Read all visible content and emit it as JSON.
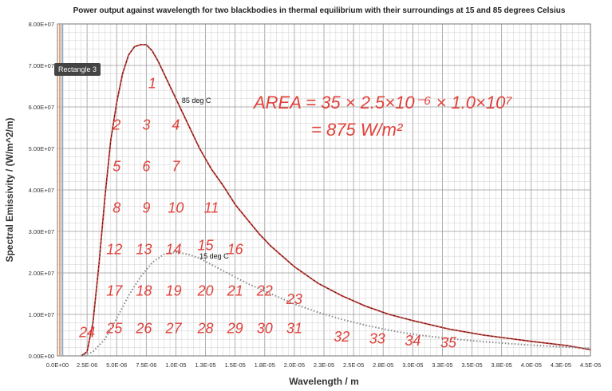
{
  "chart_data": {
    "type": "line",
    "title": "Power output against wavelength for two blackbodies in thermal equilibrium with their surroundings at 15 and 85 degrees Celsius",
    "xlabel": "Wavelength / m",
    "ylabel": "Spectral Emissivity / (W/m^2/m)",
    "xlim": [
      0,
      4.5e-05
    ],
    "ylim": [
      0,
      80000000.0
    ],
    "x_tick_labels": [
      "0.0E+00",
      "2.5E-06",
      "5.0E-06",
      "7.5E-06",
      "1.0E-05",
      "1.3E-05",
      "1.5E-05",
      "1.8E-05",
      "2.0E-05",
      "2.3E-05",
      "2.5E-05",
      "2.8E-05",
      "3.0E-05",
      "3.3E-05",
      "3.5E-05",
      "3.8E-05",
      "4.0E-05",
      "4.3E-05",
      "4.5E-05"
    ],
    "y_tick_labels": [
      "0.00E+00",
      "1.00E+07",
      "2.00E+07",
      "3.00E+07",
      "4.00E+07",
      "5.00E+07",
      "6.00E+07",
      "7.00E+07",
      "8.00E+07"
    ],
    "grid": true,
    "series": [
      {
        "name": "85 deg C",
        "color": "#e0413a",
        "x": [
          2e-06,
          2.5e-06,
          3e-06,
          3.5e-06,
          4e-06,
          4.5e-06,
          5e-06,
          5.5e-06,
          6e-06,
          6.5e-06,
          7e-06,
          7.5e-06,
          8e-06,
          8.5e-06,
          9e-06,
          9.5e-06,
          1e-05,
          1.1e-05,
          1.2e-05,
          1.3e-05,
          1.4e-05,
          1.5e-05,
          1.6e-05,
          1.7e-05,
          1.8e-05,
          2e-05,
          2.2e-05,
          2.4e-05,
          2.6e-05,
          2.8e-05,
          3e-05,
          3.3e-05,
          3.6e-05,
          4e-05,
          4.3e-05,
          4.5e-05
        ],
        "y": [
          0,
          1000000.0,
          8000000.0,
          22000000.0,
          38000000.0,
          52000000.0,
          61000000.0,
          68000000.0,
          72500000.0,
          74500000.0,
          75000000.0,
          75000000.0,
          73500000.0,
          71000000.0,
          68000000.0,
          65000000.0,
          62000000.0,
          56000000.0,
          50000000.0,
          45000000.0,
          41000000.0,
          36500000.0,
          33000000.0,
          29500000.0,
          26500000.0,
          21500000.0,
          17500000.0,
          14500000.0,
          12000000.0,
          10000000.0,
          8500000.0,
          6500000.0,
          5000000.0,
          3500000.0,
          2500000.0,
          1500000.0
        ]
      },
      {
        "name": "15 deg C",
        "color": "#888888",
        "x": [
          2e-06,
          3e-06,
          4e-06,
          5e-06,
          6e-06,
          7e-06,
          8e-06,
          9e-06,
          1e-05,
          1.1e-05,
          1.2e-05,
          1.3e-05,
          1.4e-05,
          1.6e-05,
          1.8e-05,
          2e-05,
          2.2e-05,
          2.4e-05,
          2.6e-05,
          2.8e-05,
          3e-05,
          3.3e-05,
          3.6e-05,
          4e-05,
          4.5e-05
        ],
        "y": [
          0,
          1000000.0,
          4000000.0,
          9000000.0,
          14500000.0,
          19000000.0,
          22500000.0,
          24500000.0,
          25000000.0,
          24500000.0,
          23500000.0,
          22000000.0,
          20500000.0,
          17500000.0,
          15000000.0,
          12500000.0,
          10500000.0,
          8800000.0,
          7400000.0,
          6200000.0,
          5200000.0,
          4200000.0,
          3400000.0,
          2600000.0,
          1800000.0
        ]
      }
    ],
    "annotations": {
      "label_85": "85 deg C",
      "label_15": "15 deg C",
      "rectangle_label": "Rectangle 3",
      "area_line1": "AREA = 35 × 2.5×10⁻⁶ × 1.0×10⁷",
      "area_line2": "= 875  W/m²",
      "square_numbers": [
        {
          "n": "1",
          "x": 8e-06,
          "y": 64500000.0
        },
        {
          "n": "2",
          "x": 5e-06,
          "y": 54500000.0
        },
        {
          "n": "3",
          "x": 7.5e-06,
          "y": 54500000.0
        },
        {
          "n": "4",
          "x": 1e-05,
          "y": 54500000.0
        },
        {
          "n": "5",
          "x": 5e-06,
          "y": 44500000.0
        },
        {
          "n": "6",
          "x": 7.5e-06,
          "y": 44500000.0
        },
        {
          "n": "7",
          "x": 1e-05,
          "y": 44500000.0
        },
        {
          "n": "8",
          "x": 5e-06,
          "y": 34500000.0
        },
        {
          "n": "9",
          "x": 7.5e-06,
          "y": 34500000.0
        },
        {
          "n": "10",
          "x": 1e-05,
          "y": 34500000.0
        },
        {
          "n": "11",
          "x": 1.3e-05,
          "y": 34500000.0
        },
        {
          "n": "12",
          "x": 4.8e-06,
          "y": 24500000.0
        },
        {
          "n": "13",
          "x": 7.3e-06,
          "y": 24500000.0
        },
        {
          "n": "14",
          "x": 9.8e-06,
          "y": 24500000.0
        },
        {
          "n": "15",
          "x": 1.25e-05,
          "y": 25500000.0
        },
        {
          "n": "16",
          "x": 1.5e-05,
          "y": 24500000.0
        },
        {
          "n": "17",
          "x": 4.8e-06,
          "y": 14500000.0
        },
        {
          "n": "18",
          "x": 7.3e-06,
          "y": 14500000.0
        },
        {
          "n": "19",
          "x": 9.8e-06,
          "y": 14500000.0
        },
        {
          "n": "20",
          "x": 1.25e-05,
          "y": 14500000.0
        },
        {
          "n": "21",
          "x": 1.5e-05,
          "y": 14500000.0
        },
        {
          "n": "22",
          "x": 1.75e-05,
          "y": 14500000.0
        },
        {
          "n": "23",
          "x": 2e-05,
          "y": 12500000.0
        },
        {
          "n": "24",
          "x": 2.5e-06,
          "y": 4500000.0
        },
        {
          "n": "25",
          "x": 4.8e-06,
          "y": 5500000.0
        },
        {
          "n": "26",
          "x": 7.3e-06,
          "y": 5500000.0
        },
        {
          "n": "27",
          "x": 9.8e-06,
          "y": 5500000.0
        },
        {
          "n": "28",
          "x": 1.25e-05,
          "y": 5500000.0
        },
        {
          "n": "29",
          "x": 1.5e-05,
          "y": 5500000.0
        },
        {
          "n": "30",
          "x": 1.75e-05,
          "y": 5500000.0
        },
        {
          "n": "31",
          "x": 2e-05,
          "y": 5500000.0
        },
        {
          "n": "32",
          "x": 2.4e-05,
          "y": 3500000.0
        },
        {
          "n": "33",
          "x": 2.7e-05,
          "y": 3000000.0
        },
        {
          "n": "34",
          "x": 3e-05,
          "y": 2500000.0
        },
        {
          "n": "35",
          "x": 3.3e-05,
          "y": 2000000.0
        }
      ]
    }
  }
}
